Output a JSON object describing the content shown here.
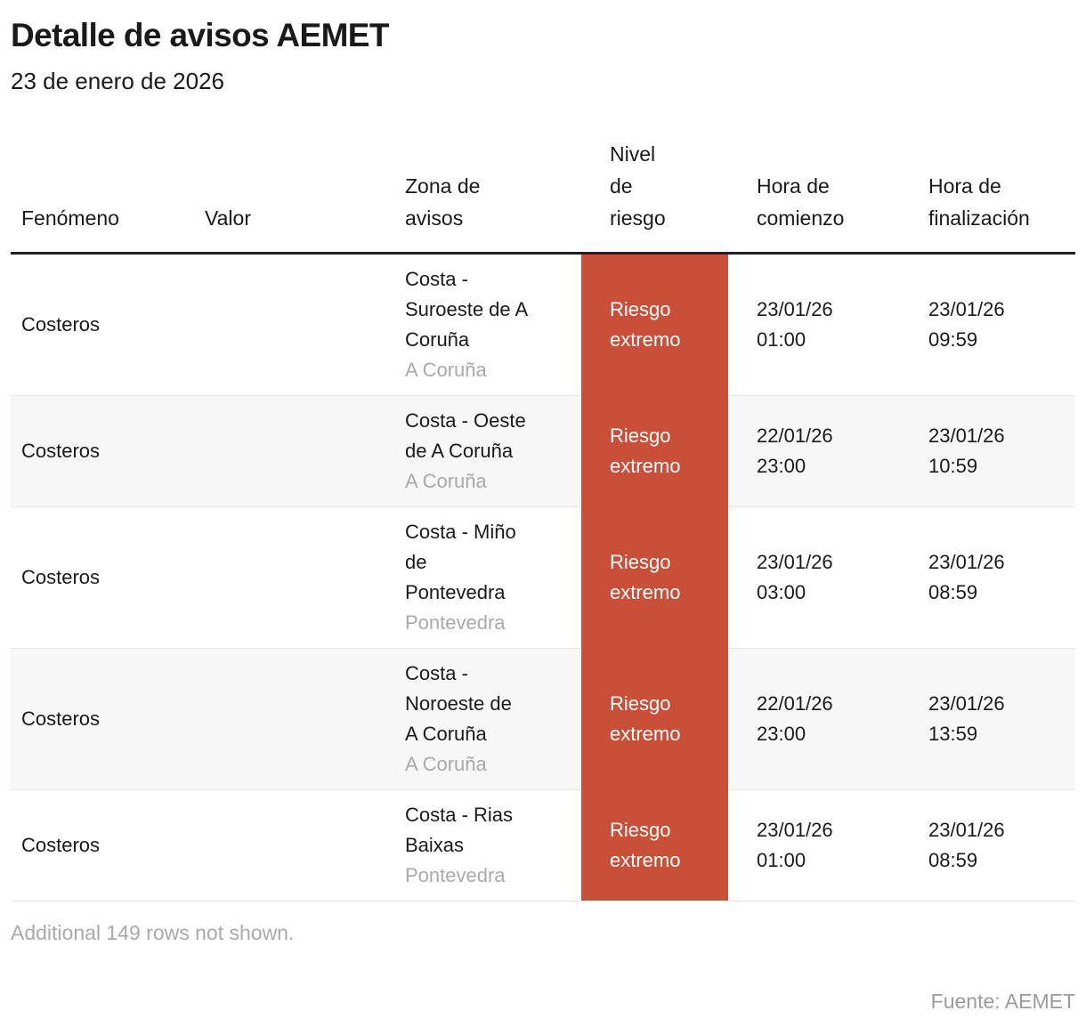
{
  "header": {
    "title": "Detalle de avisos AEMET",
    "subtitle": "23 de enero de 2026"
  },
  "table": {
    "columns_display": [
      "Fenómeno",
      "Valor",
      "Zona de\navisos",
      "Nivel\nde\nriesgo",
      "Hora de\ncomienzo",
      "Hora de\nfinalización"
    ],
    "rows": [
      {
        "fenomeno": "Costeros",
        "valor": "",
        "zona": "Costa - Suroeste de A Coruña",
        "provincia": "A Coruña",
        "riesgo": "Riesgo extremo",
        "comienzo": "23/01/26 01:00",
        "finalizacion": "23/01/26 09:59"
      },
      {
        "fenomeno": "Costeros",
        "valor": "",
        "zona": "Costa - Oeste de A Coruña",
        "provincia": "A Coruña",
        "riesgo": "Riesgo extremo",
        "comienzo": "22/01/26 23:00",
        "finalizacion": "23/01/26 10:59"
      },
      {
        "fenomeno": "Costeros",
        "valor": "",
        "zona": "Costa - Miño de Pontevedra",
        "provincia": "Pontevedra",
        "riesgo": "Riesgo extremo",
        "comienzo": "23/01/26 03:00",
        "finalizacion": "23/01/26 08:59"
      },
      {
        "fenomeno": "Costeros",
        "valor": "",
        "zona": "Costa - Noroeste de A Coruña",
        "provincia": "A Coruña",
        "riesgo": "Riesgo extremo",
        "comienzo": "22/01/26 23:00",
        "finalizacion": "23/01/26 13:59"
      },
      {
        "fenomeno": "Costeros",
        "valor": "",
        "zona": "Costa - Rias Baixas",
        "provincia": "Pontevedra",
        "riesgo": "Riesgo extremo",
        "comienzo": "23/01/26 01:00",
        "finalizacion": "23/01/26 08:59"
      }
    ]
  },
  "footer": {
    "note": "Additional 149 rows not shown.",
    "source": "Fuente: AEMET"
  },
  "colors": {
    "risk_extreme_bg": "#c94f38",
    "risk_extreme_text": "#ffffff",
    "row_alt_bg": "#f7f7f7",
    "row_border": "#e6e6e6",
    "header_rule": "#212121",
    "muted_text": "#a9a9a9",
    "body_text": "#1a1a1a"
  },
  "chart_data": {
    "type": "table",
    "title": "Detalle de avisos AEMET",
    "subtitle": "23 de enero de 2026",
    "columns": [
      "Fenómeno",
      "Valor",
      "Zona de avisos",
      "Nivel de riesgo",
      "Hora de comienzo",
      "Hora de finalización"
    ],
    "rows": [
      [
        "Costeros",
        "",
        "Costa - Suroeste de A Coruña — A Coruña",
        "Riesgo extremo",
        "23/01/26 01:00",
        "23/01/26 09:59"
      ],
      [
        "Costeros",
        "",
        "Costa - Oeste de A Coruña — A Coruña",
        "Riesgo extremo",
        "22/01/26 23:00",
        "23/01/26 10:59"
      ],
      [
        "Costeros",
        "",
        "Costa - Miño de Pontevedra — Pontevedra",
        "Riesgo extremo",
        "23/01/26 03:00",
        "23/01/26 08:59"
      ],
      [
        "Costeros",
        "",
        "Costa - Noroeste de A Coruña — A Coruña",
        "Riesgo extremo",
        "22/01/26 23:00",
        "23/01/26 13:59"
      ],
      [
        "Costeros",
        "",
        "Costa - Rias Baixas — Pontevedra",
        "Riesgo extremo",
        "23/01/26 01:00",
        "23/01/26 08:59"
      ]
    ],
    "note": "Additional 149 rows not shown.",
    "source": "Fuente: AEMET"
  }
}
